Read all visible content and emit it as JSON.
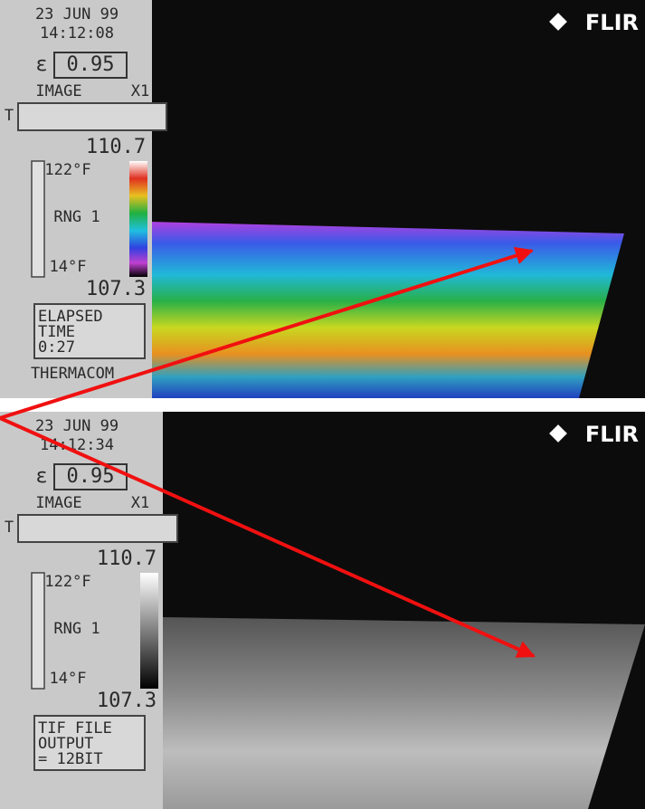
{
  "panels": [
    {
      "date": "23 JUN 99",
      "time": "14:12:08",
      "emissivity_symbol": "ε",
      "emissivity": "0.95",
      "mode": "IMAGE",
      "zoom": "X1",
      "t_label": "T",
      "top_reading": "110.7",
      "range_high": "122°F",
      "range": "RNG 1",
      "range_low": "14°F",
      "bottom_reading": "107.3",
      "info": [
        "ELAPSED",
        "TIME",
        "0:27"
      ],
      "footer": "THERMACOM",
      "logo": "FLIR"
    },
    {
      "date": "23 JUN 99",
      "time": "14:12:34",
      "emissivity_symbol": "ε",
      "emissivity": "0.95",
      "mode": "IMAGE",
      "zoom": "X1",
      "t_label": "T",
      "top_reading": "110.7",
      "range_high": "122°F",
      "range": "RNG 1",
      "range_low": "14°F",
      "bottom_reading": "107.3",
      "info": [
        "TIF FILE",
        "OUTPUT",
        "= 12BIT"
      ],
      "logo": "FLIR"
    }
  ]
}
